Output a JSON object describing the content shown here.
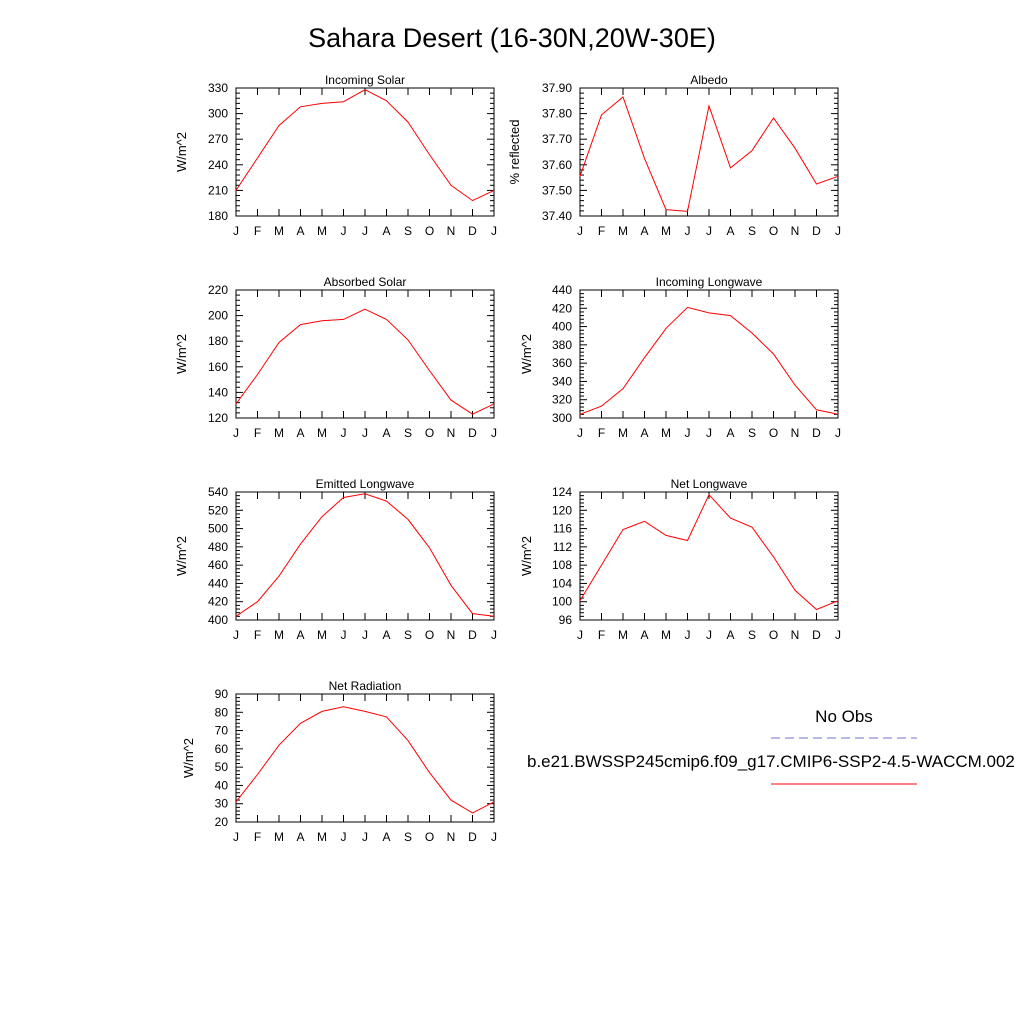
{
  "figure": {
    "title": "Sahara Desert (16-30N,20W-30E)"
  },
  "legend": {
    "obs_label": "No Obs",
    "model_label": "b.e21.BWSSP245cmip6.f09_g17.CMIP6-SSP2-4.5-WACCM.002",
    "obs_color": "#6f6fd6",
    "model_color": "#ff0000"
  },
  "chart_data": [
    {
      "type": "line",
      "title": "Incoming Solar",
      "ylabel": "W/m^2",
      "xlabel": "",
      "categories": [
        "J",
        "F",
        "M",
        "A",
        "M",
        "J",
        "J",
        "A",
        "S",
        "O",
        "N",
        "D",
        "J"
      ],
      "ylim": [
        180,
        330
      ],
      "yticks": [
        180,
        210,
        240,
        270,
        300,
        330
      ],
      "ytick_labels": [
        "180",
        "210",
        "240",
        "270",
        "300",
        "330"
      ],
      "grid": false,
      "series": [
        {
          "values": [
            210,
            248,
            286,
            308,
            312,
            314,
            328,
            315,
            290,
            252,
            216,
            198,
            210
          ]
        }
      ]
    },
    {
      "type": "line",
      "title": "Albedo",
      "ylabel": "% reflected",
      "xlabel": "",
      "categories": [
        "J",
        "F",
        "M",
        "A",
        "M",
        "J",
        "J",
        "A",
        "S",
        "O",
        "N",
        "D",
        "J"
      ],
      "ylim": [
        37.4,
        37.9
      ],
      "yticks": [
        37.4,
        37.5,
        37.6,
        37.7,
        37.8,
        37.9
      ],
      "ytick_labels": [
        "37.40",
        "37.50",
        "37.60",
        "37.70",
        "37.80",
        "37.90"
      ],
      "grid": false,
      "series": [
        {
          "values": [
            37.555,
            37.795,
            37.865,
            37.625,
            37.425,
            37.418,
            37.83,
            37.588,
            37.655,
            37.783,
            37.665,
            37.525,
            37.555
          ]
        }
      ]
    },
    {
      "type": "line",
      "title": "Absorbed Solar",
      "ylabel": "W/m^2",
      "xlabel": "",
      "categories": [
        "J",
        "F",
        "M",
        "A",
        "M",
        "J",
        "J",
        "A",
        "S",
        "O",
        "N",
        "D",
        "J"
      ],
      "ylim": [
        120,
        220
      ],
      "yticks": [
        120,
        140,
        160,
        180,
        200,
        220
      ],
      "ytick_labels": [
        "120",
        "140",
        "160",
        "180",
        "200",
        "220"
      ],
      "grid": false,
      "series": [
        {
          "values": [
            131,
            154,
            179,
            193,
            196,
            197,
            205,
            197,
            181,
            157,
            134,
            123,
            131
          ]
        }
      ]
    },
    {
      "type": "line",
      "title": "Incoming Longwave",
      "ylabel": "W/m^2",
      "xlabel": "",
      "categories": [
        "J",
        "F",
        "M",
        "A",
        "M",
        "J",
        "J",
        "A",
        "S",
        "O",
        "N",
        "D",
        "J"
      ],
      "ylim": [
        300,
        440
      ],
      "yticks": [
        300,
        320,
        340,
        360,
        380,
        400,
        420,
        440
      ],
      "ytick_labels": [
        "300",
        "320",
        "340",
        "360",
        "380",
        "400",
        "420",
        "440"
      ],
      "grid": false,
      "series": [
        {
          "values": [
            304,
            313,
            332,
            366,
            398,
            421,
            415,
            412,
            393,
            370,
            336,
            309,
            304
          ]
        }
      ]
    },
    {
      "type": "line",
      "title": "Emitted Longwave",
      "ylabel": "W/m^2",
      "xlabel": "",
      "categories": [
        "J",
        "F",
        "M",
        "A",
        "M",
        "J",
        "J",
        "A",
        "S",
        "O",
        "N",
        "D",
        "J"
      ],
      "ylim": [
        400,
        540
      ],
      "yticks": [
        400,
        420,
        440,
        460,
        480,
        500,
        520,
        540
      ],
      "ytick_labels": [
        "400",
        "420",
        "440",
        "460",
        "480",
        "500",
        "520",
        "540"
      ],
      "grid": false,
      "series": [
        {
          "values": [
            404,
            420,
            448,
            483,
            513,
            534,
            538,
            530,
            510,
            479,
            438,
            407,
            404
          ]
        }
      ]
    },
    {
      "type": "line",
      "title": "Net Longwave",
      "ylabel": "W/m^2",
      "xlabel": "",
      "categories": [
        "J",
        "F",
        "M",
        "A",
        "M",
        "J",
        "J",
        "A",
        "S",
        "O",
        "N",
        "D",
        "J"
      ],
      "ylim": [
        96,
        124
      ],
      "yticks": [
        96,
        100,
        104,
        108,
        112,
        116,
        120,
        124
      ],
      "ytick_labels": [
        "96",
        "100",
        "104",
        "108",
        "112",
        "116",
        "120",
        "124"
      ],
      "grid": false,
      "series": [
        {
          "values": [
            100.2,
            108,
            115.8,
            117.6,
            114.5,
            113.4,
            123.4,
            118.3,
            116.3,
            109.8,
            102.5,
            98.3,
            100.2
          ]
        }
      ]
    },
    {
      "type": "line",
      "title": "Net Radiation",
      "ylabel": "W/m^2",
      "xlabel": "",
      "categories": [
        "J",
        "F",
        "M",
        "A",
        "M",
        "J",
        "J",
        "A",
        "S",
        "O",
        "N",
        "D",
        "J"
      ],
      "ylim": [
        20,
        90
      ],
      "yticks": [
        20,
        30,
        40,
        50,
        60,
        70,
        80,
        90
      ],
      "ytick_labels": [
        "20",
        "30",
        "40",
        "50",
        "60",
        "70",
        "80",
        "90"
      ],
      "grid": false,
      "series": [
        {
          "values": [
            31,
            46,
            62,
            74,
            80.5,
            83,
            80.5,
            77.5,
            64.5,
            47,
            32,
            25,
            31
          ]
        }
      ]
    }
  ]
}
